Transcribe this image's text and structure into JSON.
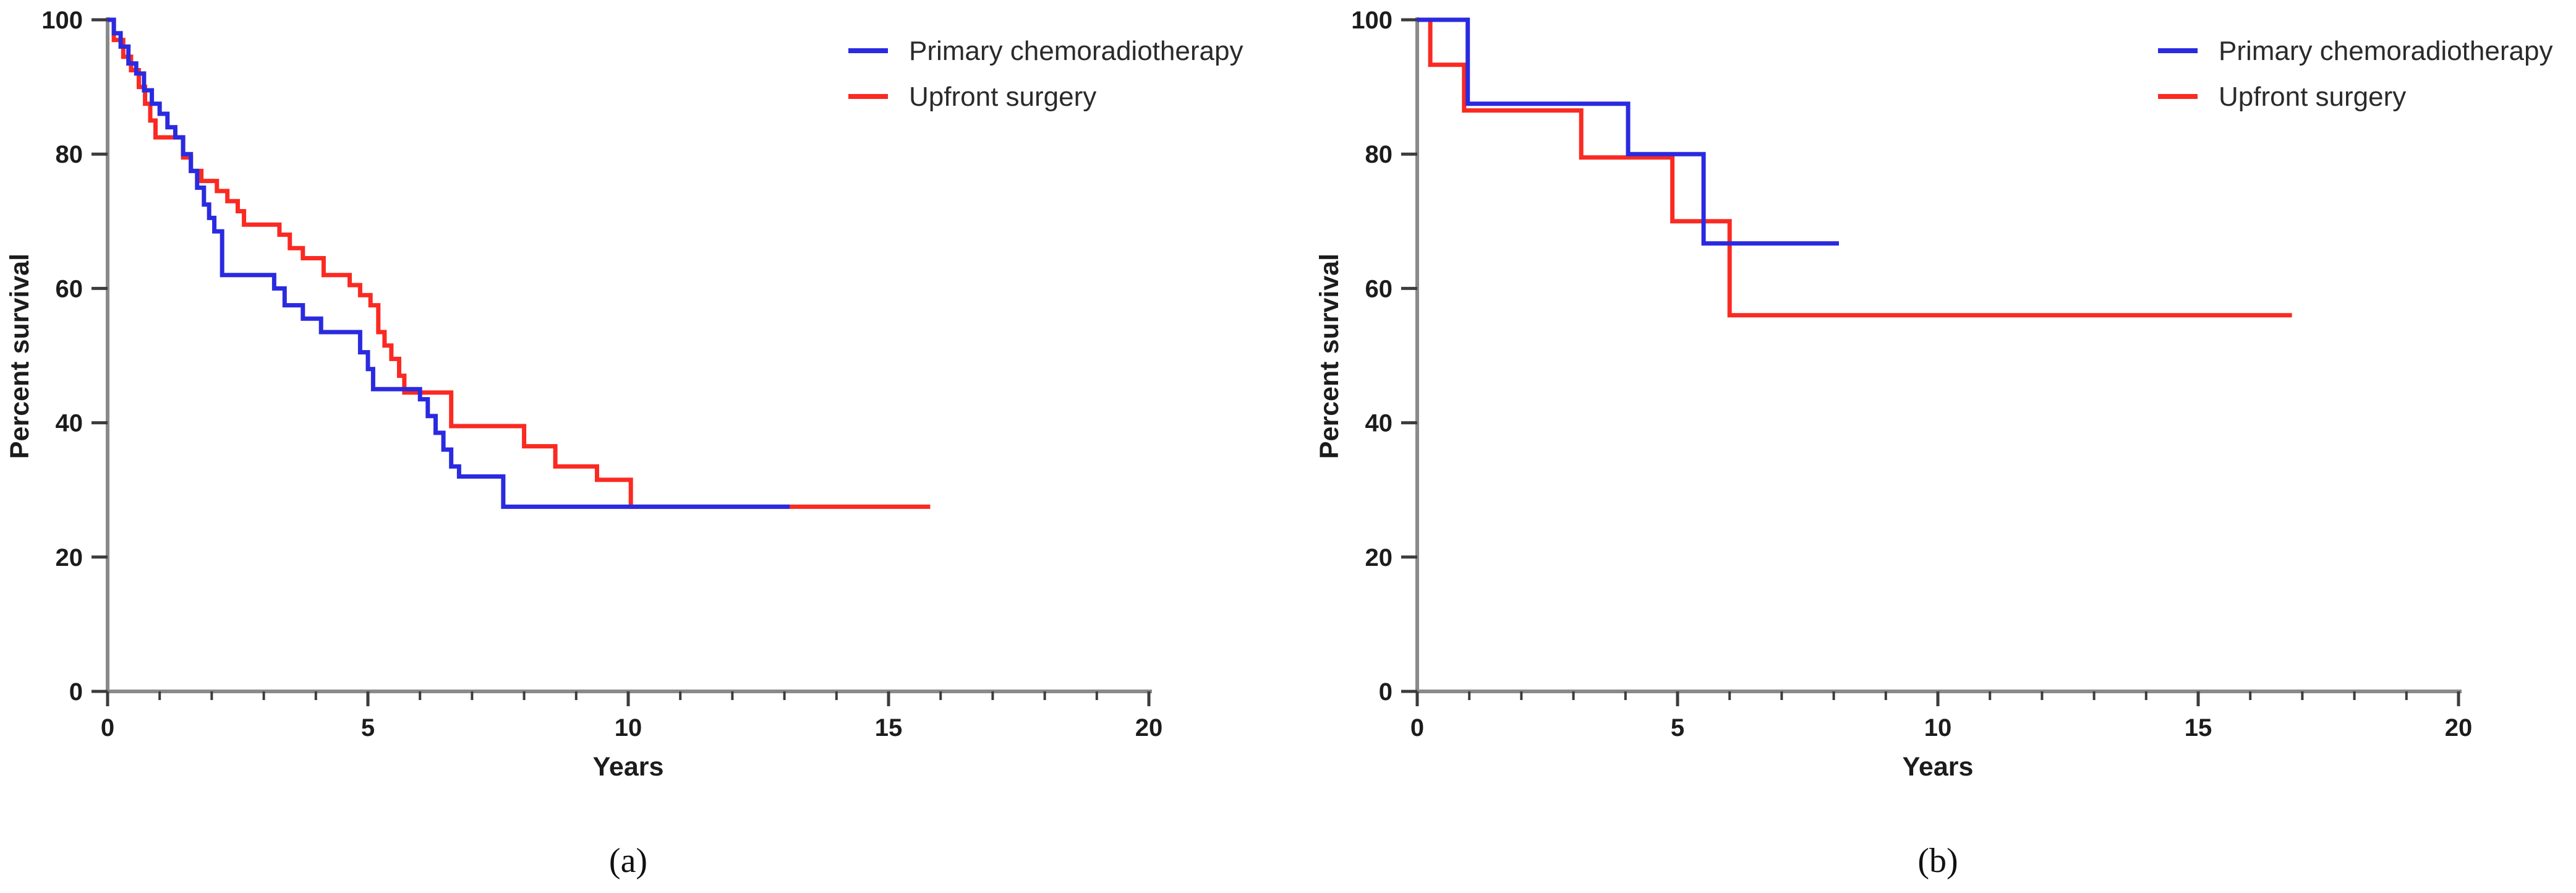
{
  "figure": {
    "background": "#ffffff",
    "panel_captions": [
      "(a)",
      "(b)"
    ]
  },
  "colors": {
    "axis_line": "#8a8a8a",
    "tick_mark": "#3c3c3c",
    "label_text": "#1c1c1c",
    "curve_blue": "#2a2ae0",
    "curve_red": "#fa2a22"
  },
  "chart_data": [
    {
      "type": "line",
      "variant": "kaplan-meier-step",
      "panel_caption": "(a)",
      "title": "",
      "xlabel": "Years",
      "ylabel": "Percent survival",
      "xlim": [
        0,
        20
      ],
      "ylim": [
        0,
        100
      ],
      "x_ticks": [
        0,
        5,
        10,
        15,
        20
      ],
      "x_minor_tick_step": 1,
      "y_ticks": [
        0,
        20,
        40,
        60,
        80,
        100
      ],
      "grid": false,
      "legend_position": "top-right",
      "series": [
        {
          "name": "Primary chemoradiotherapy",
          "color": "#2a2ae0",
          "end_x": 13.1,
          "steps": [
            [
              0,
              100
            ],
            [
              0.12,
              98
            ],
            [
              0.25,
              96
            ],
            [
              0.4,
              93.5
            ],
            [
              0.55,
              92
            ],
            [
              0.7,
              89.5
            ],
            [
              0.85,
              87.5
            ],
            [
              1.0,
              86
            ],
            [
              1.15,
              84
            ],
            [
              1.3,
              82.5
            ],
            [
              1.45,
              80
            ],
            [
              1.6,
              77.5
            ],
            [
              1.72,
              75
            ],
            [
              1.85,
              72.5
            ],
            [
              1.95,
              70.5
            ],
            [
              2.05,
              68.5
            ],
            [
              2.2,
              62
            ],
            [
              3.2,
              60
            ],
            [
              3.4,
              57.5
            ],
            [
              3.75,
              55.5
            ],
            [
              4.1,
              53.5
            ],
            [
              4.85,
              50.5
            ],
            [
              5.0,
              48
            ],
            [
              5.1,
              45
            ],
            [
              6.0,
              43.5
            ],
            [
              6.15,
              41
            ],
            [
              6.3,
              38.5
            ],
            [
              6.45,
              36
            ],
            [
              6.6,
              33.5
            ],
            [
              6.75,
              32
            ],
            [
              7.6,
              27.5
            ]
          ]
        },
        {
          "name": "Upfront surgery",
          "color": "#fa2a22",
          "end_x": 15.8,
          "steps": [
            [
              0,
              100
            ],
            [
              0.12,
              97
            ],
            [
              0.3,
              94.5
            ],
            [
              0.45,
              92.5
            ],
            [
              0.6,
              90
            ],
            [
              0.72,
              87.5
            ],
            [
              0.82,
              85
            ],
            [
              0.92,
              82.5
            ],
            [
              1.45,
              79.5
            ],
            [
              1.6,
              77.5
            ],
            [
              1.8,
              76
            ],
            [
              2.1,
              74.5
            ],
            [
              2.3,
              73
            ],
            [
              2.5,
              71.5
            ],
            [
              2.62,
              69.5
            ],
            [
              3.3,
              68
            ],
            [
              3.5,
              66
            ],
            [
              3.75,
              64.5
            ],
            [
              4.15,
              62
            ],
            [
              4.65,
              60.5
            ],
            [
              4.85,
              59
            ],
            [
              5.05,
              57.5
            ],
            [
              5.2,
              53.5
            ],
            [
              5.32,
              51.5
            ],
            [
              5.45,
              49.5
            ],
            [
              5.6,
              47
            ],
            [
              5.7,
              44.5
            ],
            [
              6.6,
              39.5
            ],
            [
              8.0,
              36.5
            ],
            [
              8.6,
              33.5
            ],
            [
              9.4,
              31.5
            ],
            [
              10.05,
              27.5
            ]
          ]
        }
      ]
    },
    {
      "type": "line",
      "variant": "kaplan-meier-step",
      "panel_caption": "(b)",
      "title": "",
      "xlabel": "Years",
      "ylabel": "Percent survival",
      "xlim": [
        0,
        20
      ],
      "ylim": [
        0,
        100
      ],
      "x_ticks": [
        0,
        5,
        10,
        15,
        20
      ],
      "x_minor_tick_step": 1,
      "y_ticks": [
        0,
        20,
        40,
        60,
        80,
        100
      ],
      "grid": false,
      "legend_position": "top-right",
      "series": [
        {
          "name": "Primary chemoradiotherapy",
          "color": "#2a2ae0",
          "end_x": 8.1,
          "steps": [
            [
              0,
              100
            ],
            [
              0.97,
              87.5
            ],
            [
              4.05,
              80
            ],
            [
              5.5,
              66.7
            ]
          ]
        },
        {
          "name": "Upfront surgery",
          "color": "#fa2a22",
          "end_x": 16.8,
          "steps": [
            [
              0,
              100
            ],
            [
              0.25,
              93.3
            ],
            [
              0.9,
              86.5
            ],
            [
              3.15,
              79.5
            ],
            [
              4.9,
              70
            ],
            [
              6.0,
              56
            ]
          ]
        }
      ]
    }
  ]
}
